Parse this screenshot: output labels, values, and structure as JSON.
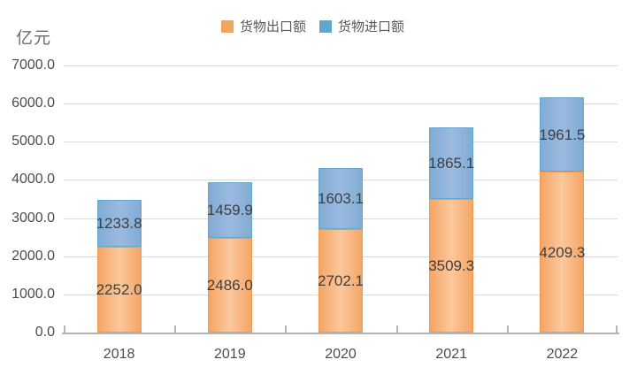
{
  "unit_label": "亿元",
  "chart_data": {
    "type": "bar",
    "stacked": true,
    "title": "",
    "ylabel": "亿元",
    "xlabel": "",
    "categories": [
      "2018",
      "2019",
      "2020",
      "2021",
      "2022"
    ],
    "series": [
      {
        "name": "货物出口额",
        "values": [
          2252.0,
          2486.0,
          2702.1,
          3509.3,
          4209.3
        ],
        "swatch": "#F5A45D",
        "fill_edge": "#F4A566",
        "fill_center": "#FCC89C",
        "border": "#EE9A51"
      },
      {
        "name": "货物进口额",
        "values": [
          1233.8,
          1459.9,
          1603.1,
          1865.1,
          1961.5
        ],
        "swatch": "#61A6CC",
        "fill_edge": "#80ACD4",
        "fill_center": "#9CBAE0",
        "border": "#66A7CB"
      }
    ],
    "ylim": [
      0,
      7000
    ],
    "ytick_step": 1000,
    "ytick_labels": [
      "0.0",
      "1000.0",
      "2000.0",
      "3000.0",
      "4000.0",
      "5000.0",
      "6000.0",
      "7000.0"
    ],
    "grid": true,
    "legend_position": "top",
    "data_labels": "inside-center",
    "colors": {
      "gridline": "#D9D9D9",
      "axis_line": "#B3B3B3",
      "tick_label": "#4C4C4C",
      "data_label": "#3E3E3E",
      "legend_text": "#595959"
    }
  }
}
